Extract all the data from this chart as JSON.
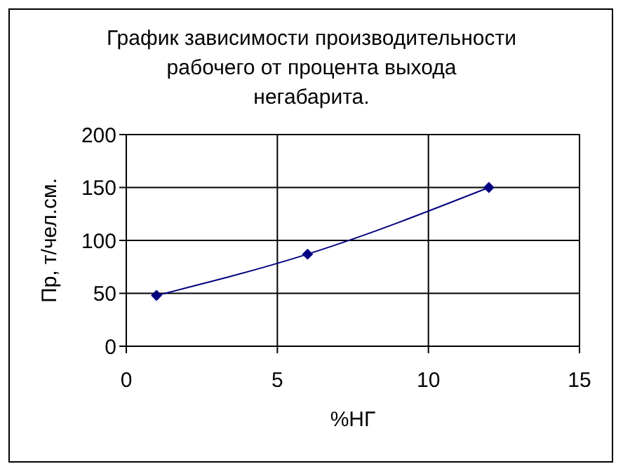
{
  "chart_data": {
    "type": "line",
    "title": "График зависимости производительности рабочего от процента выхода негабарита.",
    "xlabel": "%НГ",
    "ylabel": "Пр, т/чел.см.",
    "x": [
      1,
      6,
      12
    ],
    "series": [
      {
        "color": "#000080",
        "values": [
          48,
          87,
          150
        ]
      }
    ],
    "xlim": [
      0,
      15
    ],
    "xticks": [
      0,
      5,
      10,
      15
    ],
    "ylim": [
      0,
      200
    ],
    "yticks": [
      0,
      50,
      100,
      150,
      200
    ],
    "grid": true,
    "marker": "diamond",
    "line_style": "solid"
  }
}
